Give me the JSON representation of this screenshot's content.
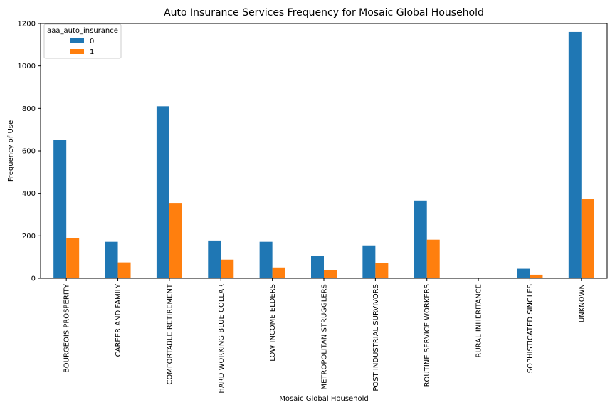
{
  "chart_data": {
    "type": "bar",
    "title": "Auto Insurance Services Frequency for Mosaic Global Household",
    "xlabel": "Mosaic Global Household",
    "ylabel": "Frequency of Use",
    "ylim": [
      0,
      1200
    ],
    "yticks": [
      0,
      200,
      400,
      600,
      800,
      1000,
      1200
    ],
    "grid": false,
    "legend": {
      "title": "aaa_auto_insurance",
      "placement": "top-left"
    },
    "categories": [
      "BOURGEOIS PROSPERITY",
      "CAREER AND FAMILY",
      "COMFORTABLE RETIREMENT",
      "HARD WORKING BLUE COLLAR",
      "LOW INCOME ELDERS",
      "METROPOLITAN STRUGGLERS",
      "POST INDUSTRIAL SURVIVORS",
      "ROUTINE SERVICE WORKERS",
      "RURAL INHERITANCE",
      "SOPHISTICATED SINGLES",
      "UNKNOWN"
    ],
    "series": [
      {
        "name": "0",
        "color": "#1f77b4",
        "values": [
          652,
          172,
          810,
          178,
          172,
          104,
          155,
          366,
          0,
          45,
          1160
        ]
      },
      {
        "name": "1",
        "color": "#ff7f0e",
        "values": [
          188,
          75,
          355,
          88,
          51,
          37,
          71,
          182,
          0,
          17,
          372
        ]
      }
    ]
  }
}
